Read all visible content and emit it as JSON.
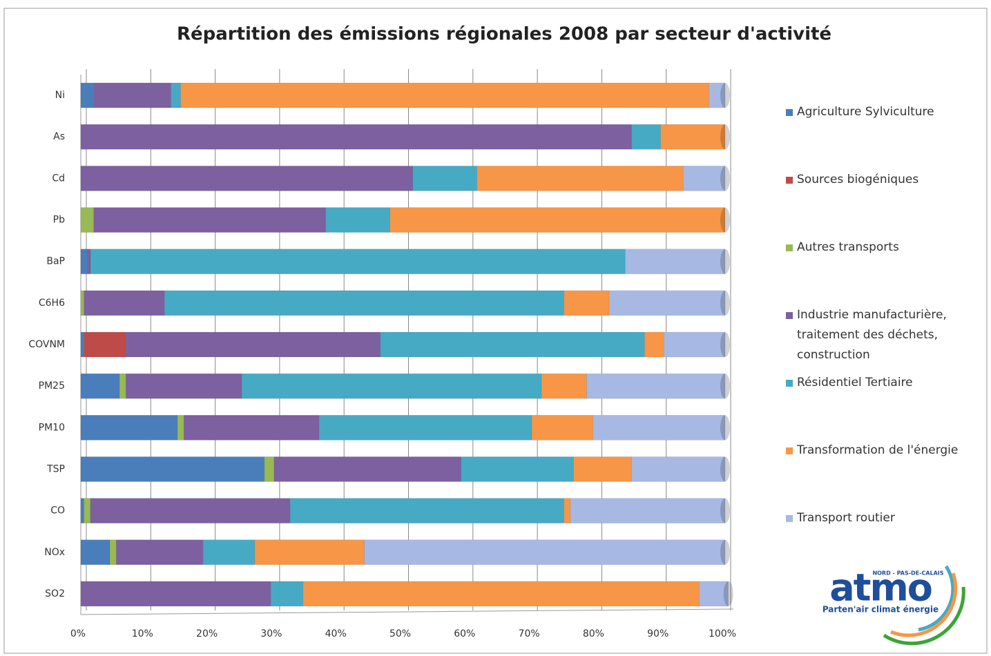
{
  "chart_data": {
    "type": "stacked-barh",
    "title": "Répartition des émissions régionales 2008 par secteur d'activité",
    "categories": [
      "Ni",
      "As",
      "Cd",
      "Pb",
      "BaP",
      "C6H6",
      "COVNM",
      "PM25",
      "PM10",
      "TSP",
      "CO",
      "NOx",
      "SO2"
    ],
    "series": [
      {
        "name": "Agriculture Sylviculture",
        "color": "#4a7ebb",
        "values": [
          2,
          0,
          0,
          0,
          1,
          0,
          0.5,
          6,
          15,
          28.5,
          0.5,
          4.5,
          0
        ]
      },
      {
        "name": "Sources biogéniques",
        "color": "#be4b48",
        "values": [
          0,
          0,
          0,
          0,
          0,
          0,
          6.5,
          0,
          0,
          0,
          0,
          0,
          0
        ]
      },
      {
        "name": "Autres transports",
        "color": "#98b954",
        "values": [
          0,
          0,
          0,
          2,
          0,
          0.5,
          0,
          1,
          1,
          1.5,
          1,
          1,
          0
        ]
      },
      {
        "name": "Industrie manufacturière, traitement des déchets, construction",
        "color": "#7d60a0",
        "values": [
          12,
          85.5,
          51.5,
          36,
          0.5,
          12.5,
          39.5,
          18,
          21,
          29,
          31,
          13.5,
          29.5
        ]
      },
      {
        "name": "Résidentiel Tertiaire",
        "color": "#46aac5",
        "values": [
          1.5,
          4.5,
          10,
          10,
          83,
          62,
          41,
          46.5,
          33,
          17.5,
          42.5,
          8,
          5
        ]
      },
      {
        "name": "Transformation de l'énergie",
        "color": "#f79646",
        "values": [
          82,
          10,
          32,
          52,
          0,
          7,
          3,
          7,
          9.5,
          9,
          1,
          17,
          61.5
        ]
      },
      {
        "name": "Transport routier",
        "color": "#a7b9e3",
        "values": [
          2.5,
          0,
          6.5,
          0,
          15.5,
          18,
          9.5,
          21.5,
          20.5,
          14.5,
          24,
          56,
          4.5
        ]
      }
    ],
    "xlim": [
      0,
      100
    ],
    "xticks": [
      {
        "value": 0,
        "label": "0%"
      },
      {
        "value": 10,
        "label": "10%"
      },
      {
        "value": 20,
        "label": "20%"
      },
      {
        "value": 30,
        "label": "30%"
      },
      {
        "value": 40,
        "label": "40%"
      },
      {
        "value": 50,
        "label": "50%"
      },
      {
        "value": 60,
        "label": "60%"
      },
      {
        "value": 70,
        "label": "70%"
      },
      {
        "value": 80,
        "label": "80%"
      },
      {
        "value": 90,
        "label": "90%"
      },
      {
        "value": 100,
        "label": "100%"
      }
    ],
    "grid": true,
    "legend": "right"
  },
  "logo": {
    "region": "NORD - PAS-DE-CALAIS",
    "name": "atmo",
    "tagline": "Parten'air climat énergie"
  }
}
